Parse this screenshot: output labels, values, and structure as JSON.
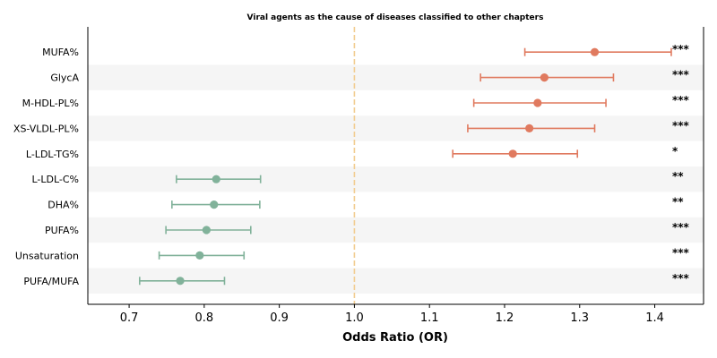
{
  "chart_data": {
    "type": "forest",
    "title": "Viral agents as the cause of diseases classified to other chapters",
    "xlabel": "Odds Ratio (OR)",
    "ylabel": "",
    "xlim": [
      0.645,
      1.465
    ],
    "xticks": [
      "0.7",
      "0.8",
      "0.9",
      "1.0",
      "1.1",
      "1.2",
      "1.3",
      "1.4"
    ],
    "xtick_values": [
      0.7,
      0.8,
      0.9,
      1.0,
      1.1,
      1.2,
      1.3,
      1.4
    ],
    "reference_line": 1.0,
    "grid": false,
    "colors": {
      "positive": "#e07a5f",
      "negative": "#81b29a",
      "reference_line": "#f2cc8f",
      "band": "#f5f5f5"
    },
    "rows": [
      {
        "label": "MUFA%",
        "or": 1.32,
        "lo": 1.227,
        "hi": 1.422,
        "sig": "***",
        "direction": "positive"
      },
      {
        "label": "GlycA",
        "or": 1.253,
        "lo": 1.168,
        "hi": 1.345,
        "sig": "***",
        "direction": "positive"
      },
      {
        "label": "M-HDL-PL%",
        "or": 1.244,
        "lo": 1.159,
        "hi": 1.335,
        "sig": "***",
        "direction": "positive"
      },
      {
        "label": "XS-VLDL-PL%",
        "or": 1.233,
        "lo": 1.151,
        "hi": 1.32,
        "sig": "***",
        "direction": "positive"
      },
      {
        "label": "L-LDL-TG%",
        "or": 1.211,
        "lo": 1.131,
        "hi": 1.297,
        "sig": "*",
        "direction": "positive"
      },
      {
        "label": "L-LDL-C%",
        "or": 0.816,
        "lo": 0.763,
        "hi": 0.875,
        "sig": "**",
        "direction": "negative"
      },
      {
        "label": "DHA%",
        "or": 0.813,
        "lo": 0.757,
        "hi": 0.874,
        "sig": "**",
        "direction": "negative"
      },
      {
        "label": "PUFA%",
        "or": 0.803,
        "lo": 0.749,
        "hi": 0.862,
        "sig": "***",
        "direction": "negative"
      },
      {
        "label": "Unsaturation",
        "or": 0.794,
        "lo": 0.74,
        "hi": 0.853,
        "sig": "***",
        "direction": "negative"
      },
      {
        "label": "PUFA/MUFA",
        "or": 0.768,
        "lo": 0.714,
        "hi": 0.827,
        "sig": "***",
        "direction": "negative"
      }
    ]
  }
}
